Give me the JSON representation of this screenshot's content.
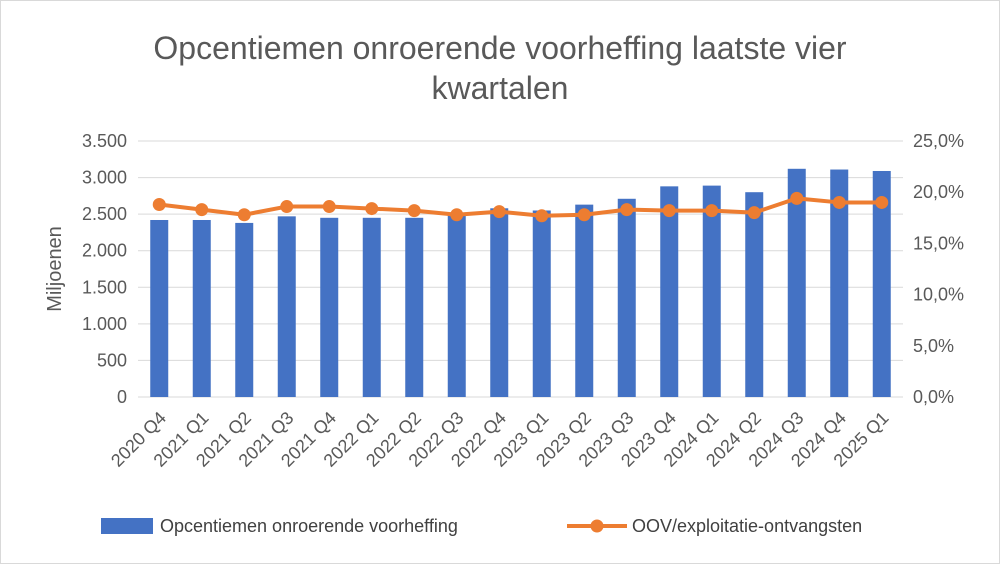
{
  "chart_data": {
    "type": "bar+line",
    "title_lines": [
      "Opcentiemen onroerende voorheffing laatste vier",
      "kwartalen"
    ],
    "ylabel": "Miljoenen",
    "categories": [
      "2020 Q4",
      "2021 Q1",
      "2021 Q2",
      "2021 Q3",
      "2021 Q4",
      "2022 Q1",
      "2022 Q2",
      "2022 Q3",
      "2022 Q4",
      "2023 Q1",
      "2023 Q2",
      "2023 Q3",
      "2023 Q4",
      "2024 Q1",
      "2024 Q2",
      "2024 Q3",
      "2024 Q4",
      "2025 Q1"
    ],
    "series": [
      {
        "name": "Opcentiemen onroerende voorheffing",
        "type": "bar",
        "axis": "left",
        "color": "#4472C4",
        "values": [
          2420,
          2420,
          2380,
          2470,
          2450,
          2450,
          2450,
          2500,
          2580,
          2550,
          2630,
          2710,
          2880,
          2890,
          2800,
          3120,
          3110,
          3090
        ]
      },
      {
        "name": "OOV/exploitatie-ontvangsten",
        "type": "line",
        "axis": "right",
        "color": "#ED7D31",
        "values": [
          18.8,
          18.3,
          17.8,
          18.6,
          18.6,
          18.4,
          18.2,
          17.8,
          18.1,
          17.7,
          17.8,
          18.3,
          18.2,
          18.2,
          18.0,
          19.4,
          19.0,
          19.0
        ]
      }
    ],
    "left_axis": {
      "ylim": [
        0,
        3500
      ],
      "ticks": [
        "0",
        "500",
        "1.000",
        "1.500",
        "2.000",
        "2.500",
        "3.000",
        "3.500"
      ],
      "tick_values": [
        0,
        500,
        1000,
        1500,
        2000,
        2500,
        3000,
        3500
      ]
    },
    "right_axis": {
      "ylim": [
        0,
        25
      ],
      "ticks": [
        "0,0%",
        "5,0%",
        "10,0%",
        "15,0%",
        "20,0%",
        "25,0%"
      ],
      "tick_values": [
        0,
        5,
        10,
        15,
        20,
        25
      ]
    },
    "grid": true,
    "legend_position": "bottom"
  }
}
